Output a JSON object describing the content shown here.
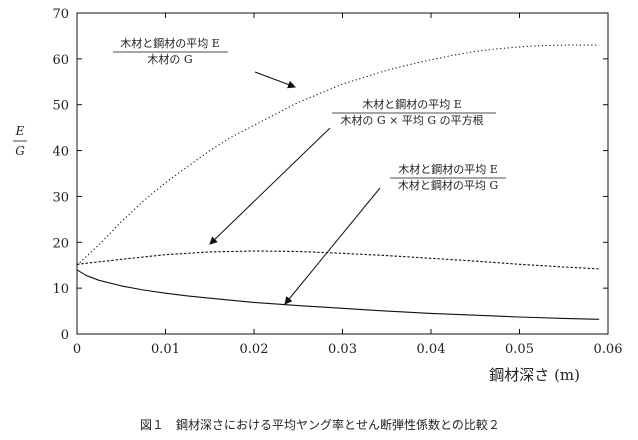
{
  "chart_data": {
    "type": "line",
    "xlabel": "鋼材深さ (m)",
    "ylabel": {
      "numerator": "E",
      "denominator": "G"
    },
    "xlim": [
      0,
      0.06
    ],
    "ylim": [
      0,
      70
    ],
    "x_ticks": [
      "0",
      "0.01",
      "0.02",
      "0.03",
      "0.04",
      "0.05",
      "0.06"
    ],
    "y_ticks": [
      "0",
      "10",
      "20",
      "30",
      "40",
      "50",
      "60",
      "70"
    ],
    "grid": false,
    "series": [
      {
        "numerator": "木材と鋼材の平均 E",
        "denominator": "木材の G",
        "style": "dotted",
        "x": [
          0,
          0.0025,
          0.005,
          0.0075,
          0.01,
          0.0125,
          0.015,
          0.0175,
          0.02,
          0.0225,
          0.025,
          0.0275,
          0.03,
          0.0325,
          0.035,
          0.0375,
          0.04,
          0.0425,
          0.045,
          0.0475,
          0.05,
          0.0525,
          0.055,
          0.0575,
          0.059
        ],
        "y": [
          15,
          19.5,
          24.5,
          29,
          33,
          36.5,
          40,
          43,
          45.5,
          48,
          50.5,
          52.5,
          54.5,
          56,
          57.5,
          58.7,
          59.8,
          60.8,
          61.6,
          62.2,
          62.6,
          62.9,
          63,
          63,
          63
        ]
      },
      {
        "numerator": "木材と鋼材の平均 E",
        "denominator": "木材の G × 平均 G の平方根",
        "style": "dashed",
        "x": [
          0,
          0.005,
          0.01,
          0.015,
          0.02,
          0.025,
          0.03,
          0.035,
          0.04,
          0.045,
          0.05,
          0.055,
          0.059
        ],
        "y": [
          15.2,
          16.3,
          17.3,
          17.9,
          18.1,
          18,
          17.6,
          17.1,
          16.5,
          15.9,
          15.2,
          14.6,
          14.2
        ]
      },
      {
        "numerator": "木材と鋼材の平均 E",
        "denominator": "木材と鋼材の平均 G",
        "style": "solid",
        "x": [
          0,
          0.001,
          0.0025,
          0.005,
          0.0075,
          0.01,
          0.0125,
          0.015,
          0.02,
          0.025,
          0.03,
          0.035,
          0.04,
          0.045,
          0.05,
          0.055,
          0.059
        ],
        "y": [
          14,
          12.8,
          11.7,
          10.5,
          9.6,
          8.9,
          8.3,
          7.8,
          6.9,
          6.2,
          5.6,
          5,
          4.5,
          4.1,
          3.7,
          3.4,
          3.2
        ]
      }
    ]
  },
  "caption": "図１　鋼材深さにおける平均ヤング率とせん断弾性係数との比較２"
}
